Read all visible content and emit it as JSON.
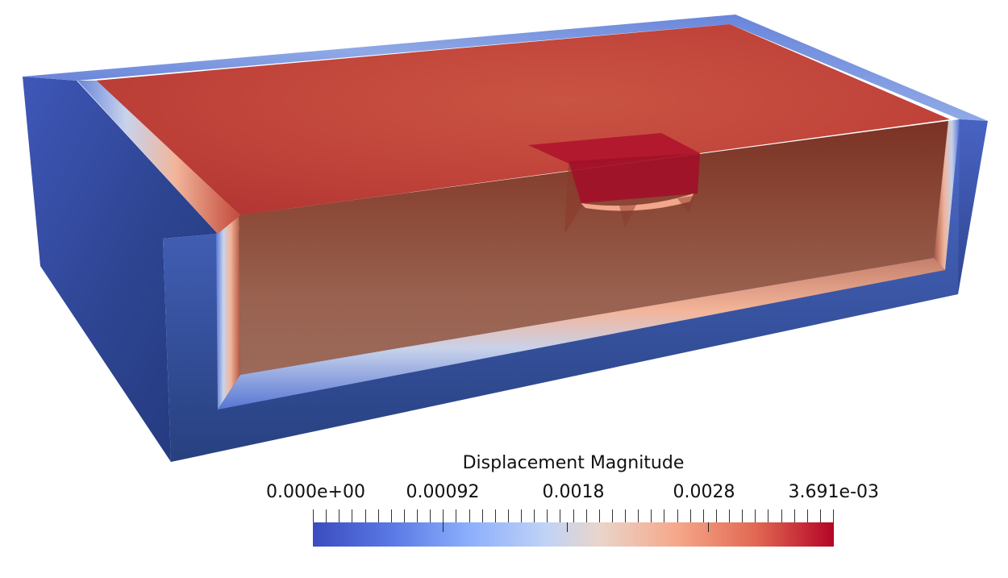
{
  "legend": {
    "title": "Displacement Magnitude",
    "ticks": [
      {
        "label": "0.000e+00",
        "value": 0
      },
      {
        "label": "0.00092",
        "value": 0.00092
      },
      {
        "label": "0.0018",
        "value": 0.0018
      },
      {
        "label": "0.0028",
        "value": 0.0028
      },
      {
        "label": "3.691e-03",
        "value": 0.003691
      }
    ],
    "range": [
      0,
      0.003691
    ],
    "colormap": "coolwarm",
    "colors": {
      "low": "#3b4cc0",
      "mid": "#dddddd",
      "high": "#b40426"
    }
  }
}
